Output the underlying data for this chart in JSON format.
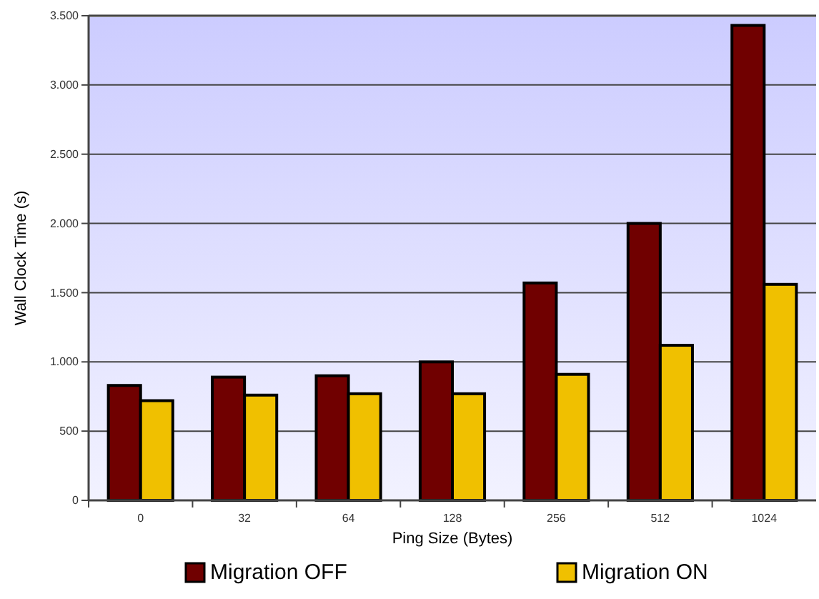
{
  "chart_data": {
    "type": "bar",
    "xlabel": "Ping Size (Bytes)",
    "ylabel": "Wall Clock Time (s)",
    "categories": [
      "0",
      "32",
      "64",
      "128",
      "256",
      "512",
      "1024"
    ],
    "series": [
      {
        "name": "Migration OFF",
        "color": "#700000",
        "values": [
          830,
          890,
          900,
          1000,
          1570,
          2000,
          3430
        ]
      },
      {
        "name": "Migration ON",
        "color": "#f0c000",
        "values": [
          720,
          760,
          770,
          770,
          910,
          1120,
          1560
        ]
      }
    ],
    "ylim": [
      0,
      3500
    ],
    "yticks": [
      0,
      500,
      {
        "value": 1000,
        "label": "1.000"
      },
      {
        "value": 1500,
        "label": "1.500"
      },
      {
        "value": 2000,
        "label": "2.000"
      },
      {
        "value": 2500,
        "label": "2.500"
      },
      {
        "value": 3000,
        "label": "3.000"
      },
      {
        "value": 3500,
        "label": "3.500"
      }
    ],
    "grid": "y",
    "legend": "bottom"
  }
}
